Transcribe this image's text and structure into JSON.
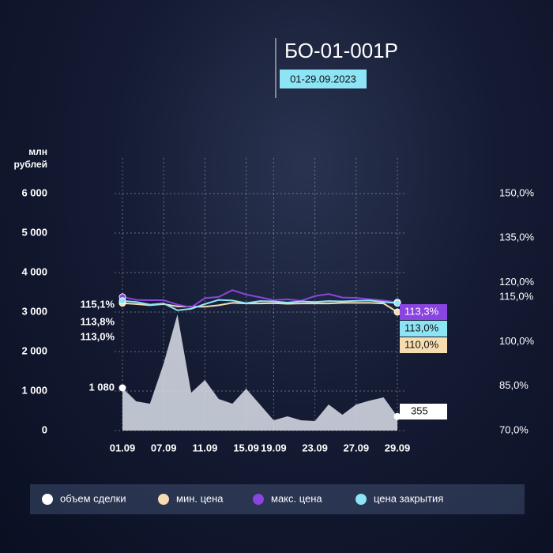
{
  "chart_data": {
    "type": "line",
    "title": "БО-01-001Р",
    "subtitle": "01-29.09.2023",
    "y_label": "млн рублей",
    "categories": [
      "01.09",
      null,
      null,
      "07.09",
      null,
      null,
      "11.09",
      null,
      null,
      "15.09",
      null,
      "19.09",
      null,
      null,
      "23.09",
      null,
      null,
      "27.09",
      null,
      null,
      "29.09"
    ],
    "series": [
      {
        "name": "объем сделки",
        "color": "#ffffff",
        "type": "area",
        "values": [
          1080,
          740,
          680,
          1700,
          2940,
          960,
          1280,
          800,
          680,
          1060,
          660,
          260,
          360,
          260,
          240,
          660,
          400,
          660,
          760,
          840,
          355
        ],
        "value_labels": [
          "1 080",
          null,
          null,
          null,
          null,
          null,
          null,
          null,
          null,
          null,
          null,
          null,
          null,
          null,
          null,
          null,
          null,
          null,
          null,
          null,
          "355"
        ]
      },
      {
        "name": "мин. цена",
        "color": "#f6dcb0",
        "axis": "y2",
        "values": [
          113.0,
          112.7,
          112.3,
          112.7,
          111.9,
          111.8,
          111.8,
          112.3,
          113.1,
          112.9,
          112.9,
          113.0,
          112.8,
          112.9,
          112.9,
          112.9,
          113.1,
          113.1,
          113.1,
          112.9,
          110.0
        ],
        "value_labels": [
          "113,0%",
          null,
          null,
          null,
          null,
          null,
          null,
          null,
          null,
          null,
          null,
          null,
          null,
          null,
          null,
          null,
          null,
          null,
          null,
          null,
          "110,0%"
        ]
      },
      {
        "name": "макс. цена",
        "color": "#8a44e0",
        "axis": "y2",
        "values": [
          115.1,
          114.1,
          114.0,
          114.0,
          112.5,
          111.6,
          114.7,
          115.1,
          117.4,
          115.9,
          115.0,
          114.0,
          114.3,
          113.8,
          115.4,
          116.1,
          114.9,
          114.8,
          114.3,
          113.9,
          113.3
        ],
        "value_labels": [
          "115,1%",
          null,
          null,
          null,
          null,
          null,
          null,
          null,
          null,
          null,
          null,
          null,
          null,
          null,
          null,
          null,
          null,
          null,
          null,
          null,
          "113,3%"
        ]
      },
      {
        "name": "цена закрытия",
        "color": "#8ce4f5",
        "axis": "y2",
        "values": [
          113.8,
          113.4,
          112.5,
          112.9,
          110.6,
          111.1,
          112.7,
          114.1,
          113.9,
          113.0,
          113.7,
          113.6,
          113.2,
          113.6,
          113.4,
          113.7,
          113.6,
          113.8,
          113.9,
          113.4,
          113.0
        ],
        "value_labels": [
          "113,8%",
          null,
          null,
          null,
          null,
          null,
          null,
          null,
          null,
          null,
          null,
          null,
          null,
          null,
          null,
          null,
          null,
          null,
          null,
          null,
          "113,0%"
        ]
      }
    ],
    "ylim": [
      0,
      6000
    ],
    "yticks": [
      {
        "value": 0,
        "label": "0"
      },
      {
        "value": 1000,
        "label": "1 000"
      },
      {
        "value": 2000,
        "label": "2 000"
      },
      {
        "value": 3000,
        "label": "3 000"
      },
      {
        "value": 4000,
        "label": "4 000"
      },
      {
        "value": 5000,
        "label": "5 000"
      },
      {
        "value": 6000,
        "label": "6 000"
      }
    ],
    "y2lim": [
      70,
      150
    ],
    "y2ticks": [
      {
        "value": 70,
        "label": "70,0%"
      },
      {
        "value": 85,
        "label": "85,0%"
      },
      {
        "value": 100,
        "label": "100,0%"
      },
      {
        "value": 115,
        "label": "115,0%"
      },
      {
        "value": 120,
        "label": "120,0%"
      },
      {
        "value": 135,
        "label": "135,0%"
      },
      {
        "value": 150,
        "label": "150,0%"
      }
    ],
    "grid": true
  }
}
